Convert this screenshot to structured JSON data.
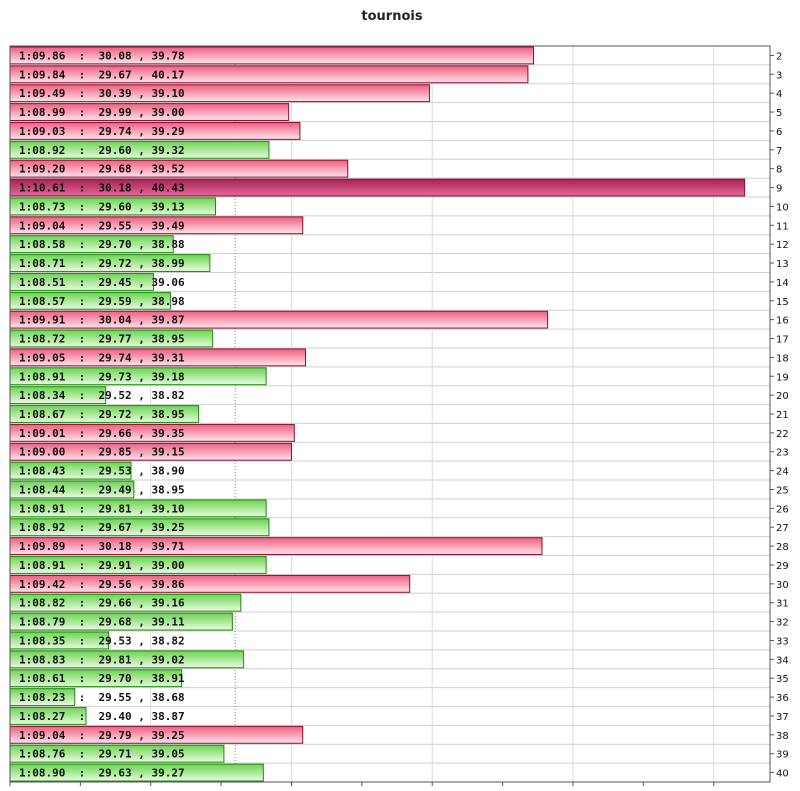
{
  "chart_data": {
    "type": "bar",
    "orientation": "horizontal",
    "title": "tournois",
    "xlabel": "",
    "ylabel": "",
    "xlim": [
      68.0,
      70.7
    ],
    "grid": true,
    "reference_line": 68.8,
    "colors": {
      "slow": "#f06d8a",
      "fast": "#7dd666",
      "slowest": "#c0306a",
      "slow_edge": "#8a1030",
      "fast_edge": "#1f8a10"
    },
    "categories": [
      "2",
      "3",
      "4",
      "5",
      "6",
      "7",
      "8",
      "9",
      "10",
      "11",
      "12",
      "13",
      "14",
      "15",
      "16",
      "17",
      "18",
      "19",
      "20",
      "21",
      "22",
      "23",
      "24",
      "25",
      "26",
      "27",
      "28",
      "29",
      "30",
      "31",
      "32",
      "33",
      "34",
      "35",
      "36",
      "37",
      "38",
      "39",
      "40"
    ],
    "labels": [
      "1:09.86  :  30.08 , 39.78",
      "1:09.84  :  29.67 , 40.17",
      "1:09.49  :  30.39 , 39.10",
      "1:08.99  :  29.99 , 39.00",
      "1:09.03  :  29.74 , 39.29",
      "1:08.92  :  29.60 , 39.32",
      "1:09.20  :  29.68 , 39.52",
      "1:10.61  :  30.18 , 40.43",
      "1:08.73  :  29.60 , 39.13",
      "1:09.04  :  29.55 , 39.49",
      "1:08.58  :  29.70 , 38.88",
      "1:08.71  :  29.72 , 38.99",
      "1:08.51  :  29.45 , 39.06",
      "1:08.57  :  29.59 , 38.98",
      "1:09.91  :  30.04 , 39.87",
      "1:08.72  :  29.77 , 38.95",
      "1:09.05  :  29.74 , 39.31",
      "1:08.91  :  29.73 , 39.18",
      "1:08.34  :  29.52 , 38.82",
      "1:08.67  :  29.72 , 38.95",
      "1:09.01  :  29.66 , 39.35",
      "1:09.00  :  29.85 , 39.15",
      "1:08.43  :  29.53 , 38.90",
      "1:08.44  :  29.49 , 38.95",
      "1:08.91  :  29.81 , 39.10",
      "1:08.92  :  29.67 , 39.25",
      "1:09.89  :  30.18 , 39.71",
      "1:08.91  :  29.91 , 39.00",
      "1:09.42  :  29.56 , 39.86",
      "1:08.82  :  29.66 , 39.16",
      "1:08.79  :  29.68 , 39.11",
      "1:08.35  :  29.53 , 38.82",
      "1:08.83  :  29.81 , 39.02",
      "1:08.61  :  29.70 , 38.91",
      "1:08.23  :  29.55 , 38.68",
      "1:08.27  :  29.40 , 38.87",
      "1:09.04  :  29.79 , 39.25",
      "1:08.76  :  29.71 , 39.05",
      "1:08.90  :  29.63 , 39.27"
    ],
    "values": [
      69.86,
      69.84,
      69.49,
      68.99,
      69.03,
      68.92,
      69.2,
      70.61,
      68.73,
      69.04,
      68.58,
      68.71,
      68.51,
      68.57,
      69.91,
      68.72,
      69.05,
      68.91,
      68.34,
      68.67,
      69.01,
      69.0,
      68.43,
      68.44,
      68.91,
      68.92,
      69.89,
      68.91,
      69.42,
      68.82,
      68.79,
      68.35,
      68.83,
      68.61,
      68.23,
      68.27,
      69.04,
      68.76,
      68.9
    ],
    "status": [
      "slow",
      "slow",
      "slow",
      "slow",
      "slow",
      "fast",
      "slow",
      "slowest",
      "fast",
      "slow",
      "fast",
      "fast",
      "fast",
      "fast",
      "slow",
      "fast",
      "slow",
      "fast",
      "fast",
      "fast",
      "slow",
      "slow",
      "fast",
      "fast",
      "fast",
      "fast",
      "slow",
      "fast",
      "slow",
      "fast",
      "fast",
      "fast",
      "fast",
      "fast",
      "fast",
      "fast",
      "slow",
      "fast",
      "fast"
    ]
  }
}
